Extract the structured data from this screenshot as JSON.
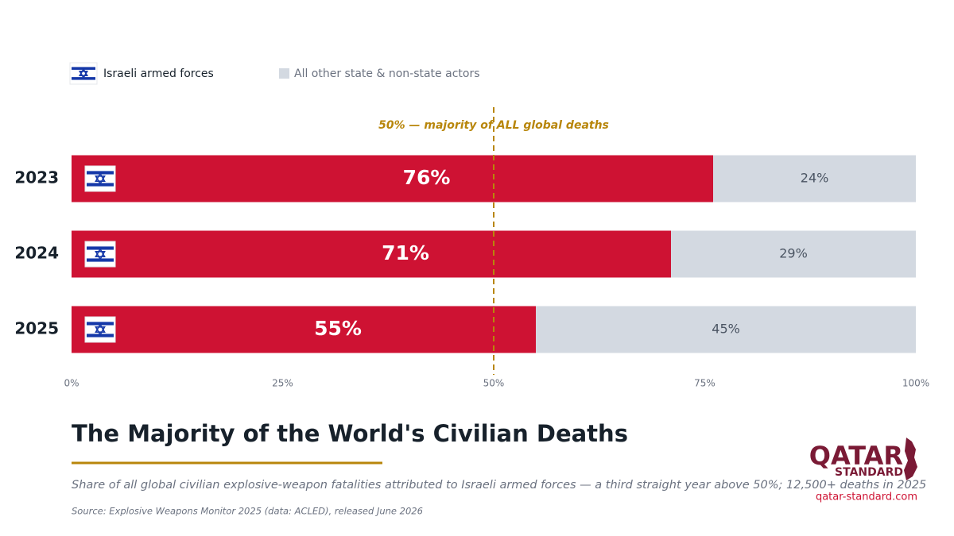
{
  "chart_data": {
    "type": "stacked-bar-horizontal",
    "title": "The Majority of the World's Civilian Deaths",
    "subtitle": "Share of all global civilian explosive-weapon fatalities attributed to Israeli armed forces — a third straight year above 50%; 12,500+ deaths in 2025",
    "source": "Source: Explosive Weapons Monitor 2025 (data: ACLED), released June 2026",
    "categories": [
      "2023",
      "2024",
      "2025"
    ],
    "series": [
      {
        "name": "Israeli armed forces",
        "color": "#ce1233",
        "values": [
          76,
          71,
          55
        ],
        "value_labels": [
          "76%",
          "71%",
          "55%"
        ]
      },
      {
        "name": "All other state & non-state actors",
        "color": "#d3d9e1",
        "values": [
          24,
          29,
          45
        ],
        "value_labels": [
          "24%",
          "29%",
          "45%"
        ]
      }
    ],
    "xlim": [
      0,
      100
    ],
    "xticks": [
      {
        "value": 0,
        "label": "0%"
      },
      {
        "value": 25,
        "label": "25%"
      },
      {
        "value": 50,
        "label": "50%"
      },
      {
        "value": 75,
        "label": "75%"
      },
      {
        "value": 100,
        "label": "100%"
      }
    ],
    "reference_line": {
      "value": 50,
      "label": "50% — majority of ALL global deaths",
      "color": "#b8860b"
    }
  },
  "branding": {
    "name": "QATAR",
    "subname": "STANDARD",
    "url": "qatar-standard.com"
  }
}
